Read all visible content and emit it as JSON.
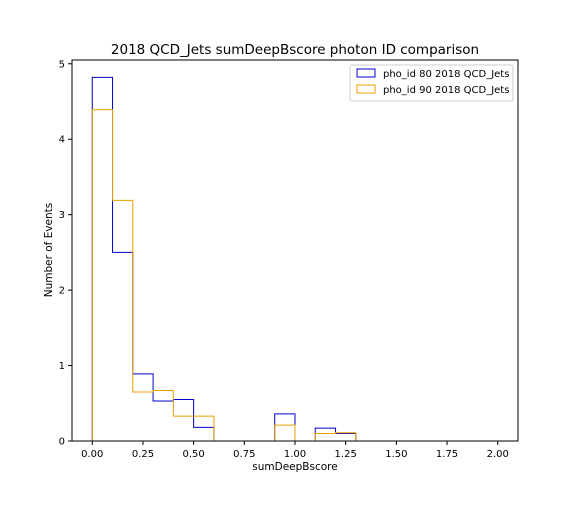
{
  "chart_data": {
    "type": "histogram",
    "title": "2018 QCD_Jets sumDeepBscore photon ID comparison",
    "xlabel": "sumDeepBscore",
    "ylabel": "Number of Events",
    "xlim": [
      -0.1,
      2.1
    ],
    "ylim": [
      0,
      5.05
    ],
    "x_ticks": [
      0.0,
      0.25,
      0.5,
      0.75,
      1.0,
      1.25,
      1.5,
      1.75,
      2.0
    ],
    "x_tick_labels": [
      "0.00",
      "0.25",
      "0.50",
      "0.75",
      "1.00",
      "1.25",
      "1.50",
      "1.75",
      "2.00"
    ],
    "y_ticks": [
      0,
      1,
      2,
      3,
      4,
      5
    ],
    "y_tick_labels": [
      "0",
      "1",
      "2",
      "3",
      "4",
      "5"
    ],
    "bin_edges": [
      0.0,
      0.1,
      0.2,
      0.3,
      0.4,
      0.5,
      0.6,
      0.7,
      0.8,
      0.9,
      1.0,
      1.1,
      1.2,
      1.3,
      1.4,
      1.5,
      1.6,
      1.7,
      1.8,
      1.9,
      2.0
    ],
    "series": [
      {
        "name": "pho_id 80 2018 QCD_Jets",
        "color": "#0000cc",
        "values": [
          4.82,
          2.5,
          0.89,
          0.53,
          0.55,
          0.18,
          0,
          0,
          0,
          0.36,
          0,
          0.17,
          0.1,
          0,
          0,
          0,
          0,
          0,
          0,
          0
        ]
      },
      {
        "name": "pho_id 90 2018 QCD_Jets",
        "color": "#e8a000",
        "values": [
          4.39,
          3.19,
          0.65,
          0.67,
          0.33,
          0.33,
          0,
          0,
          0,
          0.21,
          0,
          0.1,
          0.11,
          0,
          0,
          0,
          0,
          0,
          0,
          0
        ]
      }
    ],
    "grid": false,
    "legend_position": "top-right"
  }
}
